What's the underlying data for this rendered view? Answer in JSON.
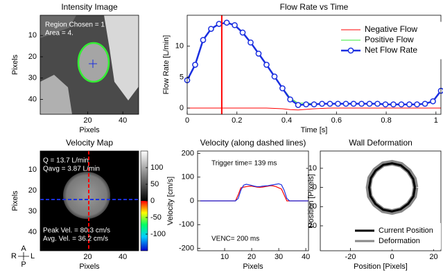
{
  "chart_data": [
    {
      "type": "image",
      "title": "Intensity Image",
      "xlabel": "Pixels",
      "ylabel": "Pixels",
      "xlim": [
        -7,
        49
      ],
      "ylim": [
        0.5,
        47
      ],
      "y_reversed": true,
      "xticks": [
        20,
        40
      ],
      "yticks": [
        10,
        20,
        30,
        40
      ],
      "annotations": [
        "Region Chosen = 1",
        "Area = 4."
      ]
    },
    {
      "type": "line",
      "title": "Flow Rate vs Time",
      "xlabel": "Time [s]",
      "ylabel": "Flow Rate [L/min]",
      "xlim": [
        0,
        1.02
      ],
      "ylim": [
        -1,
        15
      ],
      "xticks": [
        0,
        0.2,
        0.4,
        0.6,
        0.8,
        1
      ],
      "yticks": [
        0,
        5,
        10
      ],
      "legend": "upper right",
      "marker_x": 0.139,
      "marker_color": "#ff0000",
      "x": [
        0,
        0.032,
        0.064,
        0.096,
        0.128,
        0.159,
        0.191,
        0.223,
        0.255,
        0.287,
        0.319,
        0.351,
        0.383,
        0.414,
        0.446,
        0.478,
        0.51,
        0.542,
        0.574,
        0.606,
        0.638,
        0.669,
        0.701,
        0.733,
        0.765,
        0.797,
        0.829,
        0.861,
        0.893,
        0.924,
        0.956,
        0.988,
        1.02
      ],
      "series": [
        {
          "name": "Negative Flow",
          "color": "#ff0000",
          "line_width": 1,
          "values": [
            0,
            0,
            0,
            0,
            0,
            0,
            0,
            0,
            0,
            0,
            0,
            -0.05,
            -0.1,
            -0.25,
            -0.3,
            -0.2,
            -0.1,
            -0.05,
            0,
            0,
            0,
            0,
            0,
            0,
            0,
            0,
            0,
            0,
            0,
            0,
            0,
            0,
            0
          ]
        },
        {
          "name": "Positive Flow",
          "color": "#33ee33",
          "line_width": 1,
          "values": [
            4.5,
            7,
            11,
            12.8,
            13.6,
            13.8,
            13.4,
            12.2,
            10.6,
            8.8,
            7,
            5.15,
            3.3,
            1.65,
            0.8,
            0.8,
            0.7,
            0.75,
            0.7,
            0.7,
            0.7,
            0.7,
            0.7,
            0.7,
            0.7,
            0.6,
            0.6,
            0.6,
            0.6,
            0.6,
            0.7,
            1.1,
            2.8
          ]
        },
        {
          "name": "Net Flow Rate",
          "color": "#1a2fe0",
          "line_width": 2.5,
          "marker": "circle",
          "values": [
            4.5,
            7,
            11,
            12.8,
            13.6,
            13.8,
            13.4,
            12.2,
            10.6,
            8.8,
            7,
            5.1,
            3.2,
            1.4,
            0.5,
            0.6,
            0.6,
            0.7,
            0.7,
            0.7,
            0.7,
            0.7,
            0.7,
            0.7,
            0.7,
            0.6,
            0.6,
            0.6,
            0.6,
            0.6,
            0.7,
            1.1,
            2.8
          ]
        }
      ]
    },
    {
      "type": "image",
      "title": "Velocity Map",
      "xlabel": "Pixels",
      "ylabel": "Pixels",
      "xlim": [
        -7,
        49
      ],
      "ylim": [
        1,
        49
      ],
      "y_reversed": true,
      "xticks": [
        20,
        40
      ],
      "yticks": [
        10,
        20,
        30,
        40
      ],
      "annotations": [
        "Q = 13.7 L/min",
        "Qavg = 3.87 L/min",
        "Peak Vel. = 80.3 cm/s",
        "Avg. Vel. = 36.2 cm/s"
      ],
      "colorbar": {
        "lim": [
          -150,
          150
        ],
        "ticks": [
          100,
          50,
          0,
          -50,
          -100
        ]
      }
    },
    {
      "type": "line",
      "title": "Velocity (along dashed lines)",
      "xlabel": "Pixels",
      "ylabel": "Velocity [cm/s]",
      "xlim": [
        0,
        41
      ],
      "ylim": [
        -210,
        210
      ],
      "xticks": [
        10,
        20,
        30,
        40
      ],
      "yticks": [
        -200,
        -100,
        0,
        100,
        200
      ],
      "annotations": [
        "Trigger time= 139 ms",
        "VENC= 200 ms"
      ],
      "x": [
        1,
        2,
        3,
        4,
        5,
        6,
        7,
        8,
        9,
        10,
        11,
        12,
        13,
        14,
        15,
        16,
        17,
        18,
        19,
        20,
        21,
        22,
        23,
        24,
        25,
        26,
        27,
        28,
        29,
        30,
        31,
        32,
        33,
        34,
        35,
        36,
        37,
        38,
        39,
        40,
        41
      ],
      "series": [
        {
          "color": "#ff0000",
          "line_width": 1.2,
          "values": [
            0,
            0,
            0,
            0,
            0,
            0,
            0,
            0,
            0,
            0,
            0,
            0,
            0,
            0,
            25,
            55,
            58,
            60,
            62,
            62,
            60,
            58,
            57,
            58,
            60,
            62,
            64,
            63,
            60,
            55,
            50,
            25,
            0,
            0,
            0,
            0,
            0,
            0,
            0,
            0,
            0
          ]
        },
        {
          "color": "#1a2fe0",
          "line_width": 1.2,
          "values": [
            0,
            0,
            0,
            0,
            0,
            0,
            0,
            0,
            0,
            0,
            0,
            0,
            0,
            0,
            10,
            45,
            66,
            70,
            68,
            65,
            62,
            60,
            60,
            62,
            63,
            64,
            66,
            68,
            70,
            72,
            68,
            45,
            10,
            0,
            0,
            0,
            0,
            0,
            0,
            0,
            0
          ]
        }
      ]
    },
    {
      "type": "contour",
      "title": "Wall Deformation",
      "xlabel": "Position [Pixels]",
      "ylabel": "Position [Pixels]",
      "xlim": [
        -34.5,
        23.5
      ],
      "ylim": [
        -19,
        33
      ],
      "y_reversed": true,
      "xticks": [
        -20,
        0,
        20
      ],
      "yticks": [
        -10,
        0,
        10,
        20
      ],
      "legend": "lower right",
      "series": [
        {
          "name": "Current Position",
          "color": "#000000",
          "line_width": 3,
          "x": [
            11,
            10.3,
            7.8,
            4.1,
            0,
            -4.3,
            -8,
            -10.4,
            -11,
            -10.2,
            -7.9,
            -4.2,
            0,
            4.3,
            7.9,
            10.2,
            11
          ],
          "values": [
            0,
            4.6,
            8.5,
            11.4,
            12.5,
            11.6,
            8.6,
            4.5,
            0,
            -4.9,
            -8.8,
            -11.8,
            -12.6,
            -11.5,
            -8.3,
            -4.4,
            0
          ]
        },
        {
          "name": "Deformation",
          "color": "#888888",
          "line_width": 8,
          "x": [
            11.3,
            10.6,
            8,
            4.2,
            0,
            -4.4,
            -8.2,
            -10.7,
            -11.3,
            -10.5,
            -8.1,
            -4.3,
            0,
            4.4,
            8.1,
            10.5,
            11.3
          ],
          "values": [
            0,
            4.7,
            8.7,
            11.7,
            12.8,
            11.9,
            8.8,
            4.6,
            0,
            -5,
            -9,
            -12.1,
            -12.9,
            -11.8,
            -8.5,
            -4.5,
            0
          ]
        }
      ]
    }
  ],
  "orientation_labels": [
    "A",
    "R",
    "L",
    "P"
  ]
}
